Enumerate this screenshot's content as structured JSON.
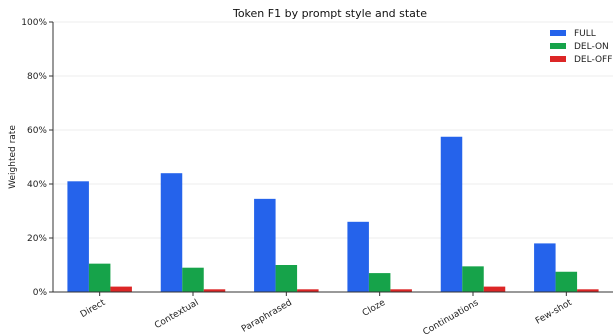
{
  "chart_data": {
    "type": "bar",
    "title": "Token F1 by prompt style and state",
    "xlabel": "",
    "ylabel": "Weighted rate",
    "ylim": [
      0,
      100
    ],
    "y_ticks": [
      "0%",
      "20%",
      "40%",
      "60%",
      "80%",
      "100%"
    ],
    "y_tick_values": [
      0,
      20,
      40,
      60,
      80,
      100
    ],
    "grid": "horizontal",
    "legend_position": "top-right",
    "categories": [
      "Direct",
      "Contextual",
      "Paraphrased",
      "Cloze",
      "Continuations",
      "Few-shot"
    ],
    "series": [
      {
        "name": "FULL",
        "color": "#2563eb",
        "values": [
          41,
          44,
          34.5,
          26,
          57.5,
          18
        ]
      },
      {
        "name": "DEL-ON",
        "color": "#16a34a",
        "values": [
          10.5,
          9,
          10,
          7,
          9.5,
          7.5
        ]
      },
      {
        "name": "DEL-OFF",
        "color": "#dc2626",
        "values": [
          2,
          1,
          1,
          1,
          2,
          1
        ]
      }
    ]
  }
}
